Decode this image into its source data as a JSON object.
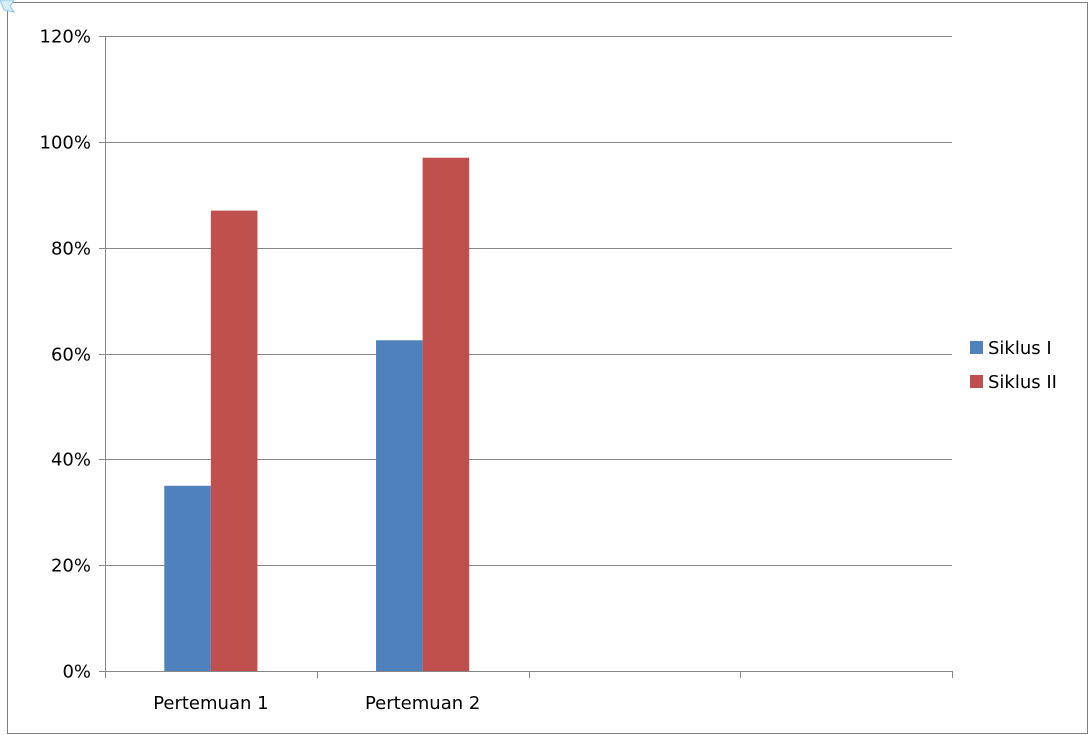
{
  "chart_data": {
    "type": "bar",
    "title": "",
    "xlabel": "",
    "ylabel": "",
    "categories": [
      "Pertemuan 1",
      "Pertemuan 2",
      "",
      ""
    ],
    "series": [
      {
        "name": "Siklus I",
        "values": [
          35,
          62.5,
          null,
          null
        ],
        "color": "#4F81BD"
      },
      {
        "name": "Siklus II",
        "values": [
          87,
          97,
          null,
          null
        ],
        "color": "#C0504D"
      }
    ],
    "ylim": [
      0,
      120
    ],
    "yticks": [
      0,
      20,
      40,
      60,
      80,
      100,
      120
    ],
    "ytick_labels": [
      "0%",
      "20%",
      "40%",
      "60%",
      "80%",
      "100%",
      "120%"
    ],
    "grid": true,
    "legend_position": "right"
  }
}
